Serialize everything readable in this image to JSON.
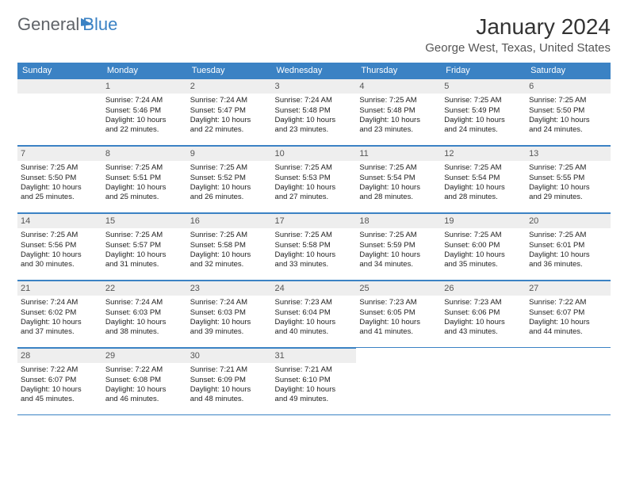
{
  "logo": {
    "part1": "General",
    "part2": "Blue"
  },
  "title": "January 2024",
  "location": "George West, Texas, United States",
  "colors": {
    "header_bg": "#3b82c4",
    "header_text": "#ffffff",
    "daynum_bg": "#eeeeee",
    "daynum_text": "#555555",
    "border": "#3b82c4",
    "body_text": "#222222",
    "title_text": "#333333",
    "location_text": "#555555",
    "logo_gray": "#5f6368",
    "logo_blue": "#3b82c4"
  },
  "weekdays": [
    "Sunday",
    "Monday",
    "Tuesday",
    "Wednesday",
    "Thursday",
    "Friday",
    "Saturday"
  ],
  "weeks": [
    [
      null,
      {
        "n": "1",
        "sr": "Sunrise: 7:24 AM",
        "ss": "Sunset: 5:46 PM",
        "d1": "Daylight: 10 hours",
        "d2": "and 22 minutes."
      },
      {
        "n": "2",
        "sr": "Sunrise: 7:24 AM",
        "ss": "Sunset: 5:47 PM",
        "d1": "Daylight: 10 hours",
        "d2": "and 22 minutes."
      },
      {
        "n": "3",
        "sr": "Sunrise: 7:24 AM",
        "ss": "Sunset: 5:48 PM",
        "d1": "Daylight: 10 hours",
        "d2": "and 23 minutes."
      },
      {
        "n": "4",
        "sr": "Sunrise: 7:25 AM",
        "ss": "Sunset: 5:48 PM",
        "d1": "Daylight: 10 hours",
        "d2": "and 23 minutes."
      },
      {
        "n": "5",
        "sr": "Sunrise: 7:25 AM",
        "ss": "Sunset: 5:49 PM",
        "d1": "Daylight: 10 hours",
        "d2": "and 24 minutes."
      },
      {
        "n": "6",
        "sr": "Sunrise: 7:25 AM",
        "ss": "Sunset: 5:50 PM",
        "d1": "Daylight: 10 hours",
        "d2": "and 24 minutes."
      }
    ],
    [
      {
        "n": "7",
        "sr": "Sunrise: 7:25 AM",
        "ss": "Sunset: 5:50 PM",
        "d1": "Daylight: 10 hours",
        "d2": "and 25 minutes."
      },
      {
        "n": "8",
        "sr": "Sunrise: 7:25 AM",
        "ss": "Sunset: 5:51 PM",
        "d1": "Daylight: 10 hours",
        "d2": "and 25 minutes."
      },
      {
        "n": "9",
        "sr": "Sunrise: 7:25 AM",
        "ss": "Sunset: 5:52 PM",
        "d1": "Daylight: 10 hours",
        "d2": "and 26 minutes."
      },
      {
        "n": "10",
        "sr": "Sunrise: 7:25 AM",
        "ss": "Sunset: 5:53 PM",
        "d1": "Daylight: 10 hours",
        "d2": "and 27 minutes."
      },
      {
        "n": "11",
        "sr": "Sunrise: 7:25 AM",
        "ss": "Sunset: 5:54 PM",
        "d1": "Daylight: 10 hours",
        "d2": "and 28 minutes."
      },
      {
        "n": "12",
        "sr": "Sunrise: 7:25 AM",
        "ss": "Sunset: 5:54 PM",
        "d1": "Daylight: 10 hours",
        "d2": "and 28 minutes."
      },
      {
        "n": "13",
        "sr": "Sunrise: 7:25 AM",
        "ss": "Sunset: 5:55 PM",
        "d1": "Daylight: 10 hours",
        "d2": "and 29 minutes."
      }
    ],
    [
      {
        "n": "14",
        "sr": "Sunrise: 7:25 AM",
        "ss": "Sunset: 5:56 PM",
        "d1": "Daylight: 10 hours",
        "d2": "and 30 minutes."
      },
      {
        "n": "15",
        "sr": "Sunrise: 7:25 AM",
        "ss": "Sunset: 5:57 PM",
        "d1": "Daylight: 10 hours",
        "d2": "and 31 minutes."
      },
      {
        "n": "16",
        "sr": "Sunrise: 7:25 AM",
        "ss": "Sunset: 5:58 PM",
        "d1": "Daylight: 10 hours",
        "d2": "and 32 minutes."
      },
      {
        "n": "17",
        "sr": "Sunrise: 7:25 AM",
        "ss": "Sunset: 5:58 PM",
        "d1": "Daylight: 10 hours",
        "d2": "and 33 minutes."
      },
      {
        "n": "18",
        "sr": "Sunrise: 7:25 AM",
        "ss": "Sunset: 5:59 PM",
        "d1": "Daylight: 10 hours",
        "d2": "and 34 minutes."
      },
      {
        "n": "19",
        "sr": "Sunrise: 7:25 AM",
        "ss": "Sunset: 6:00 PM",
        "d1": "Daylight: 10 hours",
        "d2": "and 35 minutes."
      },
      {
        "n": "20",
        "sr": "Sunrise: 7:25 AM",
        "ss": "Sunset: 6:01 PM",
        "d1": "Daylight: 10 hours",
        "d2": "and 36 minutes."
      }
    ],
    [
      {
        "n": "21",
        "sr": "Sunrise: 7:24 AM",
        "ss": "Sunset: 6:02 PM",
        "d1": "Daylight: 10 hours",
        "d2": "and 37 minutes."
      },
      {
        "n": "22",
        "sr": "Sunrise: 7:24 AM",
        "ss": "Sunset: 6:03 PM",
        "d1": "Daylight: 10 hours",
        "d2": "and 38 minutes."
      },
      {
        "n": "23",
        "sr": "Sunrise: 7:24 AM",
        "ss": "Sunset: 6:03 PM",
        "d1": "Daylight: 10 hours",
        "d2": "and 39 minutes."
      },
      {
        "n": "24",
        "sr": "Sunrise: 7:23 AM",
        "ss": "Sunset: 6:04 PM",
        "d1": "Daylight: 10 hours",
        "d2": "and 40 minutes."
      },
      {
        "n": "25",
        "sr": "Sunrise: 7:23 AM",
        "ss": "Sunset: 6:05 PM",
        "d1": "Daylight: 10 hours",
        "d2": "and 41 minutes."
      },
      {
        "n": "26",
        "sr": "Sunrise: 7:23 AM",
        "ss": "Sunset: 6:06 PM",
        "d1": "Daylight: 10 hours",
        "d2": "and 43 minutes."
      },
      {
        "n": "27",
        "sr": "Sunrise: 7:22 AM",
        "ss": "Sunset: 6:07 PM",
        "d1": "Daylight: 10 hours",
        "d2": "and 44 minutes."
      }
    ],
    [
      {
        "n": "28",
        "sr": "Sunrise: 7:22 AM",
        "ss": "Sunset: 6:07 PM",
        "d1": "Daylight: 10 hours",
        "d2": "and 45 minutes."
      },
      {
        "n": "29",
        "sr": "Sunrise: 7:22 AM",
        "ss": "Sunset: 6:08 PM",
        "d1": "Daylight: 10 hours",
        "d2": "and 46 minutes."
      },
      {
        "n": "30",
        "sr": "Sunrise: 7:21 AM",
        "ss": "Sunset: 6:09 PM",
        "d1": "Daylight: 10 hours",
        "d2": "and 48 minutes."
      },
      {
        "n": "31",
        "sr": "Sunrise: 7:21 AM",
        "ss": "Sunset: 6:10 PM",
        "d1": "Daylight: 10 hours",
        "d2": "and 49 minutes."
      },
      null,
      null,
      null
    ]
  ]
}
